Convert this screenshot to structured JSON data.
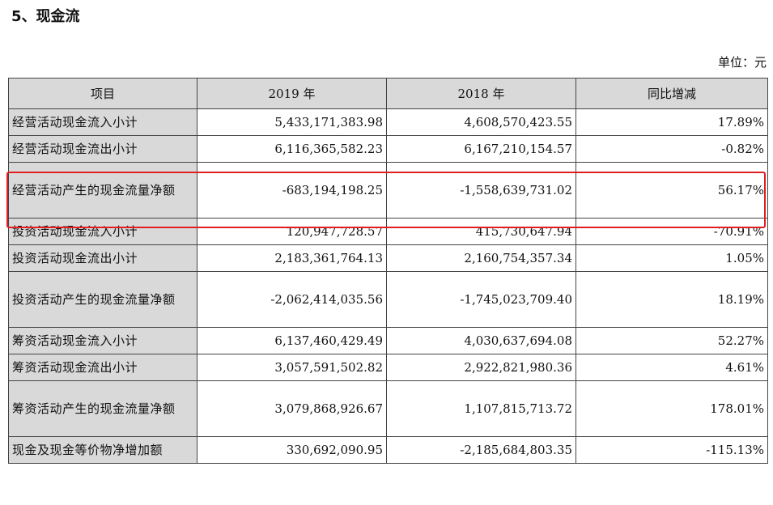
{
  "title": "5、现金流",
  "unit_label": "单位：元",
  "headers": [
    "项目",
    "2019 年",
    "2018 年",
    "同比增减"
  ],
  "rows": [
    {
      "item": "经营活动现金流入小计",
      "y2019": "5,433,171,383.98",
      "y2018": "4,608,570,423.55",
      "change": "17.89%"
    },
    {
      "item": "经营活动现金流出小计",
      "y2019": "6,116,365,582.23",
      "y2018": "6,167,210,154.57",
      "change": "-0.82%"
    },
    {
      "item": "经营活动产生的现金流量净额",
      "y2019": "-683,194,198.25",
      "y2018": "-1,558,639,731.02",
      "change": "56.17%"
    },
    {
      "item": "投资活动现金流入小计",
      "y2019": "120,947,728.57",
      "y2018": "415,730,647.94",
      "change": "-70.91%"
    },
    {
      "item": "投资活动现金流出小计",
      "y2019": "2,183,361,764.13",
      "y2018": "2,160,754,357.34",
      "change": "1.05%"
    },
    {
      "item": "投资活动产生的现金流量净额",
      "y2019": "-2,062,414,035.56",
      "y2018": "-1,745,023,709.40",
      "change": "18.19%"
    },
    {
      "item": "筹资活动现金流入小计",
      "y2019": "6,137,460,429.49",
      "y2018": "4,030,637,694.08",
      "change": "52.27%"
    },
    {
      "item": "筹资活动现金流出小计",
      "y2019": "3,057,591,502.82",
      "y2018": "2,922,821,980.36",
      "change": "4.61%"
    },
    {
      "item": "筹资活动产生的现金流量净额",
      "y2019": "3,079,868,926.67",
      "y2018": "1,107,815,713.72",
      "change": "178.01%"
    },
    {
      "item": "现金及现金等价物净增加额",
      "y2019": "330,692,090.95",
      "y2018": "-2,185,684,803.35",
      "change": "-115.13%"
    }
  ],
  "highlight_color": "#e02020"
}
